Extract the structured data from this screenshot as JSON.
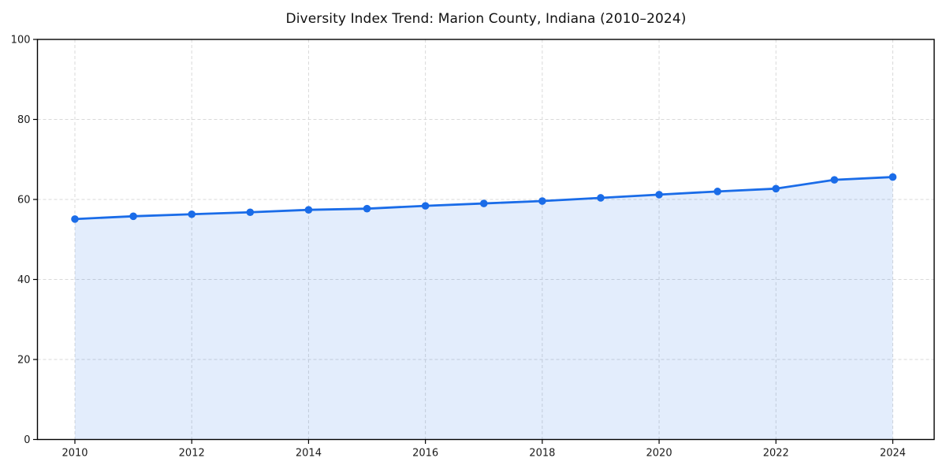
{
  "chart_data": {
    "type": "line",
    "title": "Diversity Index Trend: Marion County, Indiana (2010–2024)",
    "xlabel": "",
    "ylabel": "",
    "x": [
      2010,
      2011,
      2012,
      2013,
      2014,
      2015,
      2016,
      2017,
      2018,
      2019,
      2020,
      2021,
      2022,
      2023,
      2024
    ],
    "series": [
      {
        "name": "Diversity Index",
        "values": [
          55.1,
          55.8,
          56.3,
          56.8,
          57.4,
          57.7,
          58.4,
          59.0,
          59.6,
          60.4,
          61.2,
          62.0,
          62.7,
          64.9,
          65.6
        ]
      }
    ],
    "ylim": [
      0,
      100
    ],
    "yticks": [
      0,
      20,
      40,
      60,
      80,
      100
    ],
    "xticks": [
      2010,
      2012,
      2014,
      2016,
      2018,
      2020,
      2022,
      2024
    ],
    "grid": true,
    "grid_style": "dashed",
    "legend_position": "none",
    "style": {
      "line_color": "#1a6ce8",
      "marker_color": "#1a6ce8",
      "fill_color": "rgba(26,108,232,0.12)",
      "grid_color": "#d9d9d9",
      "spine_color": "#000000",
      "background_color": "#ffffff",
      "marker": "circle",
      "area_fill": true
    }
  }
}
